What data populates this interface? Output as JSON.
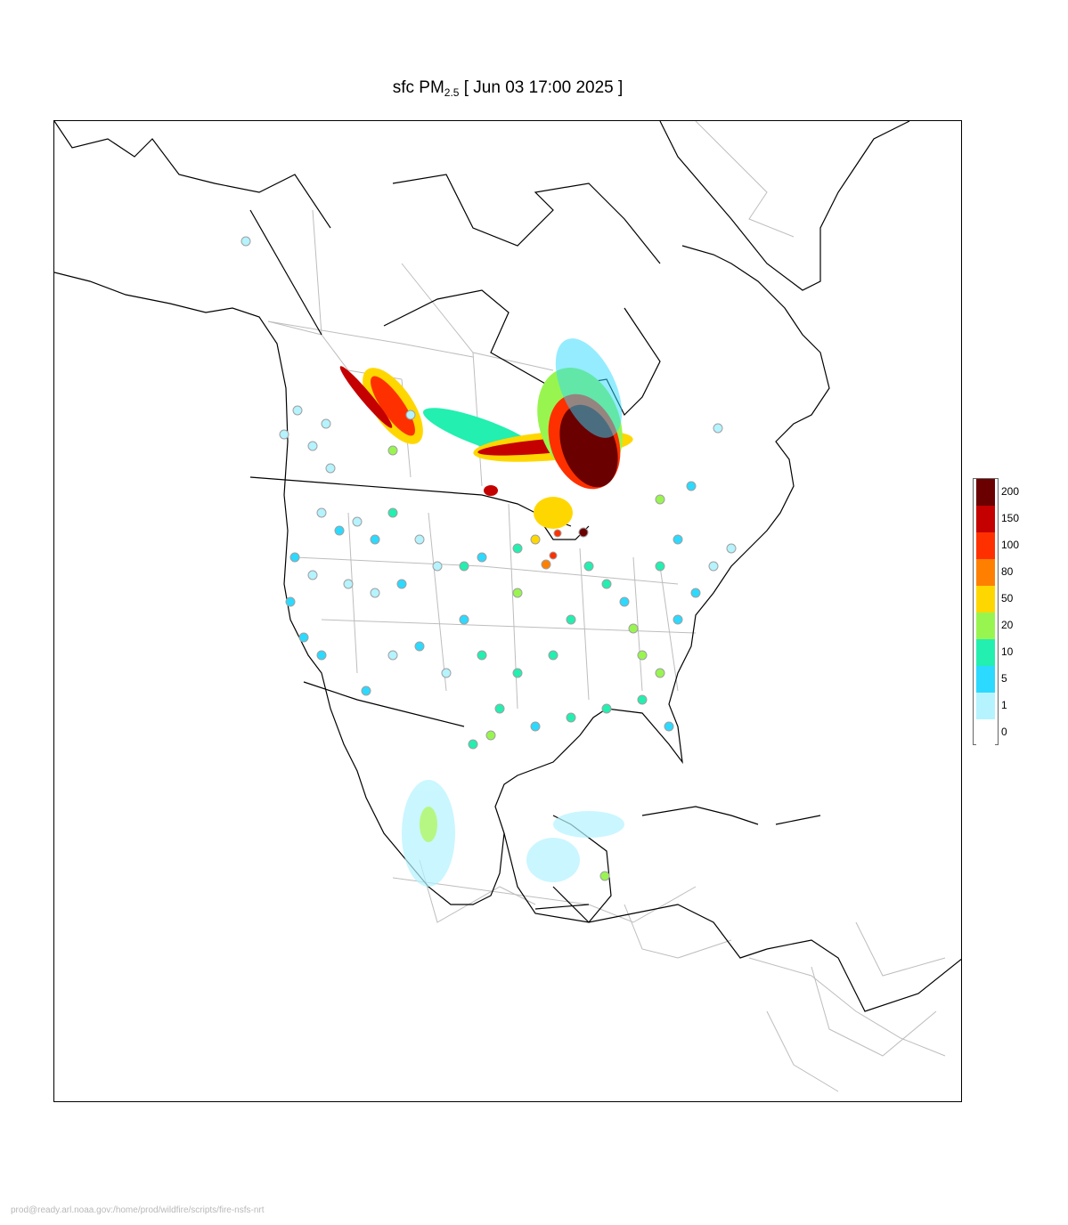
{
  "title": {
    "prefix": "sfc PM",
    "subscript": "2.5",
    "suffix": " [ Jun 03 17:00 2025 ]"
  },
  "legend": {
    "bins": [
      {
        "label": "200",
        "color": "#6b0000"
      },
      {
        "label": "150",
        "color": "#c40000"
      },
      {
        "label": "100",
        "color": "#ff3000"
      },
      {
        "label": "80",
        "color": "#ff8000"
      },
      {
        "label": "50",
        "color": "#ffd700"
      },
      {
        "label": "20",
        "color": "#98f550"
      },
      {
        "label": "10",
        "color": "#22efb0"
      },
      {
        "label": "5",
        "color": "#2cd9ff"
      },
      {
        "label": "1",
        "color": "#b5f3ff"
      },
      {
        "label": "0",
        "color": "#ffffff"
      }
    ]
  },
  "footer": {
    "text": "prod@ready.arl.noaa.gov:/home/prod/wildfire/scripts/fire-nsfs-nrt"
  }
}
